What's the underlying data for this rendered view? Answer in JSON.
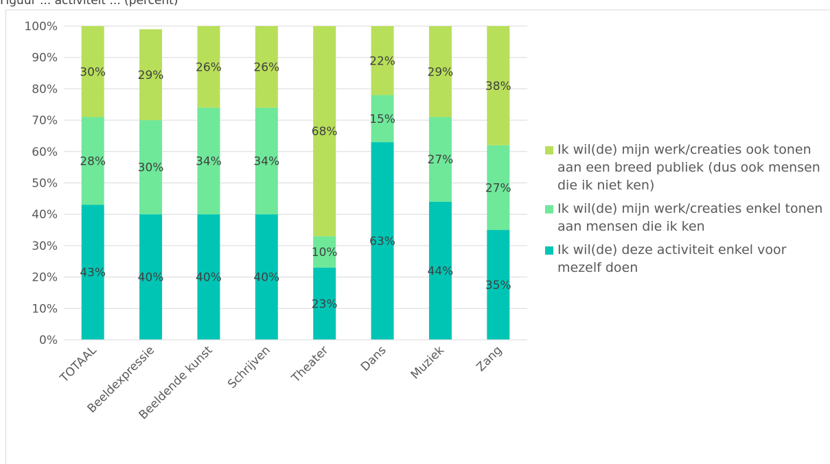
{
  "header": {
    "cut_title": "Figuur ... activiteit ... (percent)"
  },
  "chart_data": {
    "type": "bar",
    "stacked": true,
    "categories": [
      "TOTAAL",
      "Beeldexpressie",
      "Beeldende kunst",
      "Schrijven",
      "Theater",
      "Dans",
      "Muziek",
      "Zang"
    ],
    "series": [
      {
        "name": "Ik wil(de) deze activiteit enkel voor mezelf doen",
        "color": "#00c5b5",
        "values": [
          43,
          40,
          40,
          40,
          23,
          63,
          44,
          35
        ],
        "labels": [
          "43%",
          "40%",
          "40%",
          "40%",
          "23%",
          "63%",
          "44%",
          "35%"
        ]
      },
      {
        "name": "Ik wil(de) mijn werk/creaties enkel tonen aan mensen die ik ken",
        "color": "#6fe89a",
        "values": [
          28,
          30,
          34,
          34,
          10,
          15,
          27,
          27
        ],
        "labels": [
          "28%",
          "30%",
          "34%",
          "34%",
          "10%",
          "15%",
          "27%",
          "27%"
        ]
      },
      {
        "name": "Ik wil(de) mijn werk/creaties ook tonen aan een breed publiek (dus ook mensen die ik niet ken)",
        "color": "#b8df5a",
        "values": [
          30,
          29,
          26,
          26,
          68,
          22,
          29,
          38
        ],
        "labels": [
          "30%",
          "29%",
          "26%",
          "26%",
          "68%",
          "22%",
          "29%",
          "38%"
        ]
      }
    ],
    "y_ticks": [
      "0%",
      "10%",
      "20%",
      "30%",
      "40%",
      "50%",
      "60%",
      "70%",
      "80%",
      "90%",
      "100%"
    ],
    "ylim": [
      0,
      100
    ],
    "grid": true,
    "legend_position": "right",
    "legend_order": [
      2,
      1,
      0
    ],
    "title": "",
    "xlabel": "",
    "ylabel": ""
  }
}
